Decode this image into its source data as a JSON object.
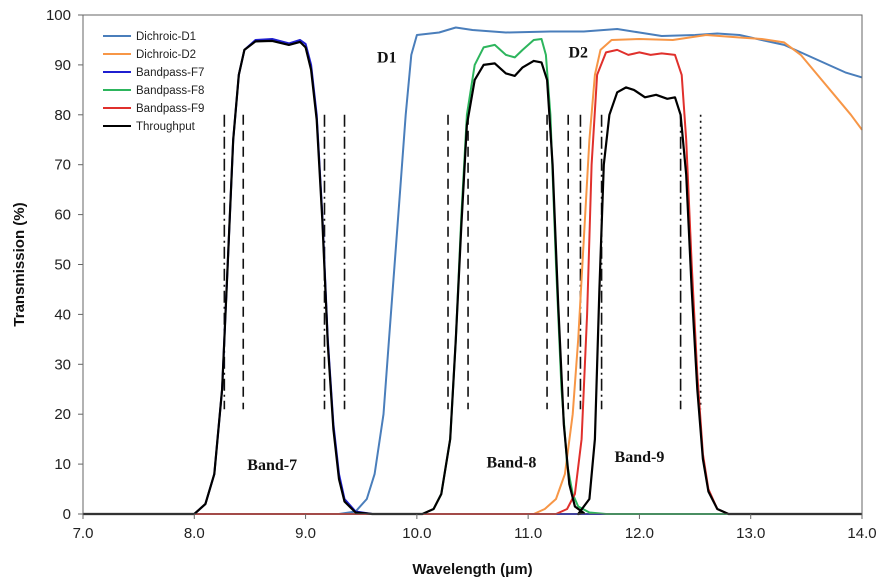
{
  "chart_data": {
    "type": "line",
    "title": "",
    "xlabel": "Wavelength (μm)",
    "ylabel": "Transmission (%)",
    "xlim": [
      7.0,
      14.0
    ],
    "ylim": [
      0,
      100
    ],
    "x_ticks": [
      "7.0",
      "8.0",
      "9.0",
      "10.0",
      "11.0",
      "12.0",
      "13.0",
      "14.0"
    ],
    "y_ticks": [
      "0",
      "10",
      "20",
      "30",
      "40",
      "50",
      "60",
      "70",
      "80",
      "90",
      "100"
    ],
    "grid": false,
    "legend_position": "top-left",
    "series": [
      {
        "name": "Dichroic-D1",
        "color": "#4a7ebb",
        "points": [
          [
            7.0,
            0
          ],
          [
            9.3,
            0
          ],
          [
            9.45,
            0.5
          ],
          [
            9.55,
            3
          ],
          [
            9.62,
            8
          ],
          [
            9.7,
            20
          ],
          [
            9.75,
            35
          ],
          [
            9.8,
            50
          ],
          [
            9.85,
            65
          ],
          [
            9.9,
            80
          ],
          [
            9.95,
            92
          ],
          [
            10.0,
            96
          ],
          [
            10.2,
            96.5
          ],
          [
            10.35,
            97.5
          ],
          [
            10.5,
            97
          ],
          [
            10.8,
            96.5
          ],
          [
            11.2,
            96.7
          ],
          [
            11.5,
            96.7
          ],
          [
            11.8,
            97.2
          ],
          [
            12.0,
            96.5
          ],
          [
            12.2,
            95.8
          ],
          [
            12.5,
            96
          ],
          [
            12.7,
            96.3
          ],
          [
            12.9,
            96
          ],
          [
            13.1,
            95
          ],
          [
            13.3,
            94
          ],
          [
            13.5,
            92
          ],
          [
            13.7,
            90
          ],
          [
            13.85,
            88.5
          ],
          [
            14.0,
            87.5
          ]
        ]
      },
      {
        "name": "Dichroic-D2",
        "color": "#f79646",
        "points": [
          [
            7.0,
            0
          ],
          [
            11.05,
            0
          ],
          [
            11.15,
            1
          ],
          [
            11.25,
            3
          ],
          [
            11.33,
            8
          ],
          [
            11.4,
            20
          ],
          [
            11.45,
            35
          ],
          [
            11.5,
            55
          ],
          [
            11.55,
            75
          ],
          [
            11.6,
            88
          ],
          [
            11.65,
            93
          ],
          [
            11.75,
            95
          ],
          [
            12.0,
            95.2
          ],
          [
            12.3,
            95
          ],
          [
            12.6,
            96
          ],
          [
            12.9,
            95.5
          ],
          [
            13.1,
            95.2
          ],
          [
            13.3,
            94.5
          ],
          [
            13.45,
            92
          ],
          [
            13.6,
            88
          ],
          [
            13.75,
            84
          ],
          [
            13.9,
            80
          ],
          [
            14.0,
            77
          ]
        ]
      },
      {
        "name": "Bandpass-F7",
        "color": "#1f1fd0",
        "points": [
          [
            7.0,
            0
          ],
          [
            8.0,
            0
          ],
          [
            8.1,
            2
          ],
          [
            8.18,
            8
          ],
          [
            8.25,
            25
          ],
          [
            8.3,
            50
          ],
          [
            8.35,
            75
          ],
          [
            8.4,
            88
          ],
          [
            8.45,
            93
          ],
          [
            8.55,
            95
          ],
          [
            8.7,
            95.2
          ],
          [
            8.85,
            94.3
          ],
          [
            8.95,
            95
          ],
          [
            9.0,
            94.2
          ],
          [
            9.05,
            90
          ],
          [
            9.1,
            80
          ],
          [
            9.15,
            60
          ],
          [
            9.2,
            35
          ],
          [
            9.25,
            18
          ],
          [
            9.3,
            8
          ],
          [
            9.35,
            3
          ],
          [
            9.45,
            0.5
          ],
          [
            9.6,
            0
          ],
          [
            14.0,
            0
          ]
        ]
      },
      {
        "name": "Bandpass-F8",
        "color": "#2db55d",
        "points": [
          [
            7.0,
            0
          ],
          [
            10.05,
            0
          ],
          [
            10.15,
            1
          ],
          [
            10.22,
            4
          ],
          [
            10.3,
            15
          ],
          [
            10.35,
            35
          ],
          [
            10.4,
            60
          ],
          [
            10.45,
            80
          ],
          [
            10.52,
            90
          ],
          [
            10.6,
            93.5
          ],
          [
            10.7,
            94
          ],
          [
            10.8,
            92
          ],
          [
            10.88,
            91.5
          ],
          [
            10.95,
            93
          ],
          [
            11.05,
            95
          ],
          [
            11.12,
            95.2
          ],
          [
            11.16,
            92
          ],
          [
            11.2,
            80
          ],
          [
            11.25,
            50
          ],
          [
            11.3,
            25
          ],
          [
            11.35,
            10
          ],
          [
            11.4,
            4
          ],
          [
            11.45,
            1.5
          ],
          [
            11.55,
            0.3
          ],
          [
            11.7,
            0
          ],
          [
            14.0,
            0
          ]
        ]
      },
      {
        "name": "Bandpass-F9",
        "color": "#e0302c",
        "points": [
          [
            7.0,
            0
          ],
          [
            11.25,
            0
          ],
          [
            11.35,
            1
          ],
          [
            11.42,
            4
          ],
          [
            11.48,
            15
          ],
          [
            11.53,
            40
          ],
          [
            11.57,
            70
          ],
          [
            11.62,
            88
          ],
          [
            11.7,
            92.5
          ],
          [
            11.8,
            93
          ],
          [
            11.9,
            92
          ],
          [
            12.0,
            92.5
          ],
          [
            12.1,
            92
          ],
          [
            12.2,
            92.3
          ],
          [
            12.32,
            92
          ],
          [
            12.38,
            88
          ],
          [
            12.42,
            75
          ],
          [
            12.47,
            50
          ],
          [
            12.52,
            28
          ],
          [
            12.57,
            12
          ],
          [
            12.62,
            5
          ],
          [
            12.7,
            1
          ],
          [
            12.8,
            0
          ],
          [
            14.0,
            0
          ]
        ]
      },
      {
        "name": "Throughput",
        "color": "#000000",
        "points": [
          [
            7.0,
            0
          ],
          [
            8.0,
            0
          ],
          [
            8.1,
            2
          ],
          [
            8.18,
            8
          ],
          [
            8.25,
            25
          ],
          [
            8.3,
            50
          ],
          [
            8.35,
            75
          ],
          [
            8.4,
            88
          ],
          [
            8.45,
            93
          ],
          [
            8.55,
            94.7
          ],
          [
            8.7,
            94.8
          ],
          [
            8.85,
            94
          ],
          [
            8.95,
            94.6
          ],
          [
            9.0,
            93.5
          ],
          [
            9.05,
            89
          ],
          [
            9.1,
            79
          ],
          [
            9.15,
            59
          ],
          [
            9.2,
            34
          ],
          [
            9.25,
            17
          ],
          [
            9.3,
            7
          ],
          [
            9.35,
            2.5
          ],
          [
            9.45,
            0.3
          ],
          [
            9.6,
            0
          ],
          [
            10.05,
            0
          ],
          [
            10.15,
            1
          ],
          [
            10.22,
            4
          ],
          [
            10.3,
            15
          ],
          [
            10.35,
            35
          ],
          [
            10.4,
            58
          ],
          [
            10.45,
            78
          ],
          [
            10.52,
            87
          ],
          [
            10.6,
            90
          ],
          [
            10.7,
            90.3
          ],
          [
            10.8,
            88.3
          ],
          [
            10.88,
            87.8
          ],
          [
            10.95,
            89.5
          ],
          [
            11.05,
            90.8
          ],
          [
            11.12,
            90.5
          ],
          [
            11.17,
            87
          ],
          [
            11.22,
            70
          ],
          [
            11.27,
            42
          ],
          [
            11.32,
            18
          ],
          [
            11.37,
            6
          ],
          [
            11.42,
            1.5
          ],
          [
            11.5,
            0.2
          ],
          [
            11.45,
            0
          ],
          [
            11.55,
            3
          ],
          [
            11.6,
            15
          ],
          [
            11.64,
            45
          ],
          [
            11.68,
            70
          ],
          [
            11.73,
            80
          ],
          [
            11.8,
            84.5
          ],
          [
            11.88,
            85.5
          ],
          [
            11.95,
            85
          ],
          [
            12.05,
            83.5
          ],
          [
            12.15,
            84
          ],
          [
            12.25,
            83.2
          ],
          [
            12.32,
            83.5
          ],
          [
            12.37,
            80
          ],
          [
            12.42,
            68
          ],
          [
            12.47,
            45
          ],
          [
            12.52,
            25
          ],
          [
            12.57,
            11
          ],
          [
            12.62,
            4.5
          ],
          [
            12.7,
            1
          ],
          [
            12.8,
            0
          ],
          [
            14.0,
            0
          ]
        ]
      }
    ],
    "markers": [
      {
        "x": 8.27,
        "style": "dashdot"
      },
      {
        "x": 8.44,
        "style": "dashed"
      },
      {
        "x": 9.17,
        "style": "dashdot"
      },
      {
        "x": 9.35,
        "style": "dashdot"
      },
      {
        "x": 10.28,
        "style": "dashed"
      },
      {
        "x": 10.46,
        "style": "dashed"
      },
      {
        "x": 11.17,
        "style": "dashed"
      },
      {
        "x": 11.36,
        "style": "dashed"
      },
      {
        "x": 11.47,
        "style": "dashdot"
      },
      {
        "x": 11.66,
        "style": "dashdot"
      },
      {
        "x": 12.37,
        "style": "dashdot"
      },
      {
        "x": 12.55,
        "style": "dotted"
      }
    ],
    "marker_range": [
      21,
      80
    ],
    "annotations": [
      {
        "text": "D1",
        "x": 9.73,
        "y": 90.5
      },
      {
        "text": "D2",
        "x": 11.45,
        "y": 91.5
      },
      {
        "text": "Band-7",
        "x": 8.7,
        "y": 8.8
      },
      {
        "text": "Band-8",
        "x": 10.85,
        "y": 9.3
      },
      {
        "text": "Band-9",
        "x": 12.0,
        "y": 10.4
      }
    ]
  }
}
